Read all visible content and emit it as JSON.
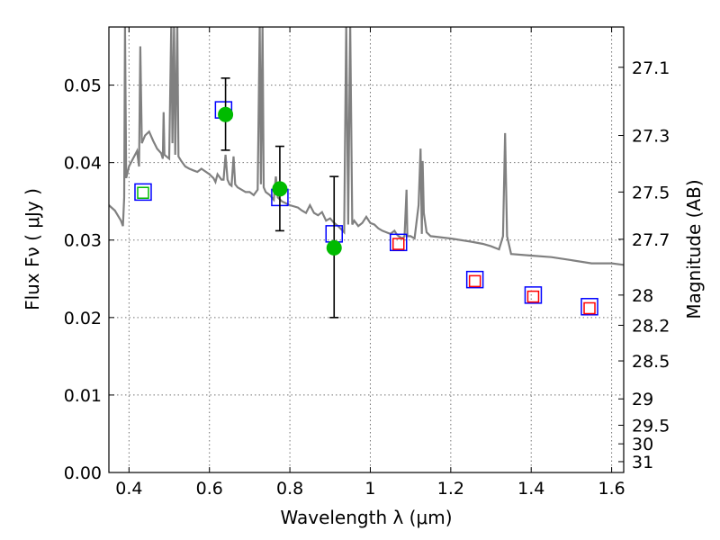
{
  "chart_data": {
    "type": "scatter",
    "title": "",
    "xlabel": "Wavelength  λ (μm)",
    "ylabel": "Flux  Fν  ( μJy )",
    "ylabel_right": "Magnitude (AB)",
    "xlim": [
      0.35,
      1.63
    ],
    "ylim": [
      0.0,
      0.0575
    ],
    "grid": true,
    "x_ticks": [
      0.4,
      0.6,
      0.8,
      1.0,
      1.2,
      1.4,
      1.6
    ],
    "x_tick_labels": [
      "0.4",
      "0.6",
      "0.8",
      "1",
      "1.2",
      "1.4",
      "1.6"
    ],
    "y_ticks": [
      0.0,
      0.01,
      0.02,
      0.03,
      0.04,
      0.05
    ],
    "y_tick_labels": [
      "0.00",
      "0.01",
      "0.02",
      "0.03",
      "0.04",
      "0.05"
    ],
    "right_ticks": [
      {
        "label": "27.1",
        "flux": 0.0523
      },
      {
        "label": "27.3",
        "flux": 0.0435
      },
      {
        "label": "27.5",
        "flux": 0.0362
      },
      {
        "label": "27.7",
        "flux": 0.0301
      },
      {
        "label": "28",
        "flux": 0.0229
      },
      {
        "label": "28.2",
        "flux": 0.019
      },
      {
        "label": "28.5",
        "flux": 0.0144
      },
      {
        "label": "29",
        "flux": 0.0095
      },
      {
        "label": "29.5",
        "flux": 0.0061
      },
      {
        "label": "30",
        "flux": 0.0037
      },
      {
        "label": "31",
        "flux": 0.0014
      }
    ],
    "series": [
      {
        "kind": "line",
        "color": "#808080",
        "points": [
          [
            0.35,
            0.0345
          ],
          [
            0.365,
            0.0338
          ],
          [
            0.38,
            0.0325
          ],
          [
            0.385,
            0.0318
          ],
          [
            0.388,
            0.0355
          ],
          [
            0.39,
            0.058
          ],
          [
            0.393,
            0.038
          ],
          [
            0.4,
            0.0395
          ],
          [
            0.41,
            0.0405
          ],
          [
            0.42,
            0.0415
          ],
          [
            0.425,
            0.0395
          ],
          [
            0.428,
            0.055
          ],
          [
            0.432,
            0.0425
          ],
          [
            0.44,
            0.0435
          ],
          [
            0.45,
            0.044
          ],
          [
            0.46,
            0.0428
          ],
          [
            0.47,
            0.0418
          ],
          [
            0.48,
            0.0412
          ],
          [
            0.484,
            0.0405
          ],
          [
            0.486,
            0.0465
          ],
          [
            0.488,
            0.041
          ],
          [
            0.5,
            0.0405
          ],
          [
            0.505,
            0.058
          ],
          [
            0.508,
            0.0425
          ],
          [
            0.512,
            0.058
          ],
          [
            0.515,
            0.041
          ],
          [
            0.52,
            0.058
          ],
          [
            0.523,
            0.0408
          ],
          [
            0.53,
            0.0402
          ],
          [
            0.54,
            0.0395
          ],
          [
            0.55,
            0.0392
          ],
          [
            0.56,
            0.039
          ],
          [
            0.57,
            0.0388
          ],
          [
            0.58,
            0.0392
          ],
          [
            0.6,
            0.0385
          ],
          [
            0.61,
            0.038
          ],
          [
            0.615,
            0.0375
          ],
          [
            0.62,
            0.0385
          ],
          [
            0.63,
            0.0378
          ],
          [
            0.635,
            0.0378
          ],
          [
            0.64,
            0.041
          ],
          [
            0.645,
            0.0378
          ],
          [
            0.65,
            0.0372
          ],
          [
            0.655,
            0.037
          ],
          [
            0.66,
            0.0408
          ],
          [
            0.664,
            0.0372
          ],
          [
            0.67,
            0.0368
          ],
          [
            0.68,
            0.0365
          ],
          [
            0.69,
            0.0362
          ],
          [
            0.7,
            0.0362
          ],
          [
            0.71,
            0.0358
          ],
          [
            0.72,
            0.0365
          ],
          [
            0.725,
            0.058
          ],
          [
            0.728,
            0.0372
          ],
          [
            0.732,
            0.058
          ],
          [
            0.735,
            0.0368
          ],
          [
            0.74,
            0.0362
          ],
          [
            0.75,
            0.0358
          ],
          [
            0.76,
            0.0352
          ],
          [
            0.765,
            0.0382
          ],
          [
            0.77,
            0.0355
          ],
          [
            0.78,
            0.035
          ],
          [
            0.8,
            0.0345
          ],
          [
            0.82,
            0.0342
          ],
          [
            0.83,
            0.0338
          ],
          [
            0.84,
            0.0335
          ],
          [
            0.85,
            0.0345
          ],
          [
            0.86,
            0.0335
          ],
          [
            0.87,
            0.0332
          ],
          [
            0.88,
            0.0336
          ],
          [
            0.89,
            0.0325
          ],
          [
            0.9,
            0.0328
          ],
          [
            0.91,
            0.0322
          ],
          [
            0.92,
            0.0318
          ],
          [
            0.935,
            0.031
          ],
          [
            0.94,
            0.058
          ],
          [
            0.945,
            0.032
          ],
          [
            0.95,
            0.058
          ],
          [
            0.955,
            0.032
          ],
          [
            0.96,
            0.0325
          ],
          [
            0.97,
            0.0318
          ],
          [
            0.98,
            0.0322
          ],
          [
            0.99,
            0.033
          ],
          [
            1.0,
            0.0322
          ],
          [
            1.01,
            0.032
          ],
          [
            1.02,
            0.0315
          ],
          [
            1.03,
            0.0312
          ],
          [
            1.04,
            0.031
          ],
          [
            1.05,
            0.0308
          ],
          [
            1.06,
            0.0312
          ],
          [
            1.065,
            0.0308
          ],
          [
            1.07,
            0.0305
          ],
          [
            1.08,
            0.0302
          ],
          [
            1.085,
            0.0305
          ],
          [
            1.09,
            0.0365
          ],
          [
            1.092,
            0.0305
          ],
          [
            1.1,
            0.0305
          ],
          [
            1.11,
            0.0302
          ],
          [
            1.12,
            0.0345
          ],
          [
            1.125,
            0.0418
          ],
          [
            1.128,
            0.0308
          ],
          [
            1.13,
            0.0402
          ],
          [
            1.133,
            0.0335
          ],
          [
            1.14,
            0.031
          ],
          [
            1.15,
            0.0305
          ],
          [
            1.2,
            0.0302
          ],
          [
            1.25,
            0.0298
          ],
          [
            1.28,
            0.0295
          ],
          [
            1.3,
            0.0292
          ],
          [
            1.32,
            0.0288
          ],
          [
            1.33,
            0.0305
          ],
          [
            1.335,
            0.0438
          ],
          [
            1.34,
            0.0305
          ],
          [
            1.35,
            0.0282
          ],
          [
            1.4,
            0.028
          ],
          [
            1.45,
            0.0278
          ],
          [
            1.5,
            0.0274
          ],
          [
            1.55,
            0.027
          ],
          [
            1.6,
            0.027
          ],
          [
            1.63,
            0.0268
          ]
        ]
      },
      {
        "kind": "square",
        "name": "",
        "edge_color": "#0000ff",
        "points": [
          [
            0.435,
            0.0362
          ],
          [
            0.635,
            0.0468
          ],
          [
            0.775,
            0.0355
          ],
          [
            0.91,
            0.0308
          ],
          [
            1.07,
            0.0297
          ],
          [
            1.26,
            0.0249
          ],
          [
            1.405,
            0.0229
          ],
          [
            1.545,
            0.0214
          ]
        ]
      },
      {
        "kind": "square",
        "name": "",
        "edge_color": "#ff0000",
        "points": [
          [
            1.07,
            0.0295
          ],
          [
            1.26,
            0.0247
          ],
          [
            1.405,
            0.0227
          ],
          [
            1.545,
            0.0212
          ]
        ]
      },
      {
        "kind": "square",
        "name": "",
        "edge_color": "#00bb00",
        "points": [
          [
            0.435,
            0.0361
          ]
        ]
      },
      {
        "kind": "errorbar",
        "name": "",
        "color": "#00bb00",
        "points": [
          {
            "x": 0.64,
            "y": 0.0462,
            "ylow": 0.0416,
            "yhigh": 0.0509
          },
          {
            "x": 0.775,
            "y": 0.0366,
            "ylow": 0.0312,
            "yhigh": 0.0421
          },
          {
            "x": 0.91,
            "y": 0.029,
            "ylow": 0.02,
            "yhigh": 0.0382
          }
        ]
      }
    ]
  }
}
